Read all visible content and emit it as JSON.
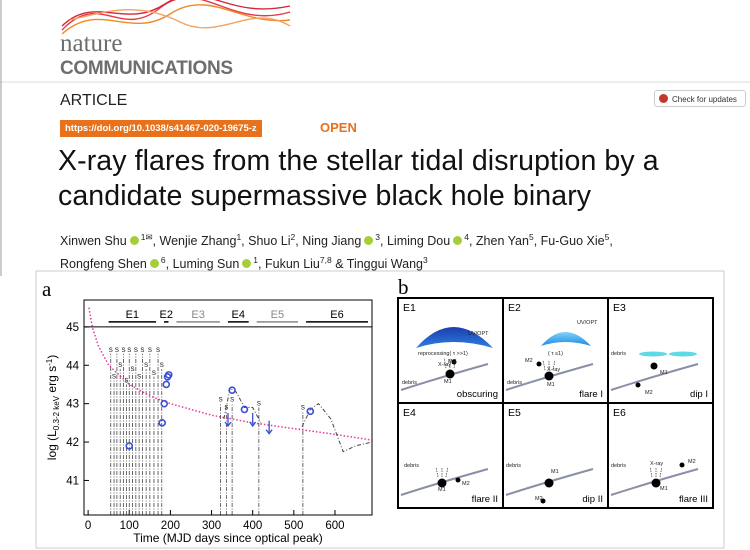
{
  "header": {
    "journal_top": "nature",
    "journal_bottom": "COMMUNICATIONS",
    "section": "ARTICLE",
    "check": "Check for updates",
    "doi": "https://doi.org/10.1038/s41467-020-19675-z",
    "access": "OPEN"
  },
  "article": {
    "title_lines": [
      "X-ray flares from the stellar tidal disruption by a",
      "candidate supermassive black hole binary"
    ],
    "author_lines": [
      [
        {
          "name": "Xinwen Shu",
          "orcid": true,
          "sup": "1✉",
          "after": ", "
        },
        {
          "name": "Wenjie Zhang",
          "sup": "1",
          "after": ", "
        },
        {
          "name": "Shuo Li",
          "sup": "2",
          "after": ", "
        },
        {
          "name": "Ning Jiang",
          "orcid": true,
          "sup": "3",
          "after": ", "
        },
        {
          "name": "Liming Dou",
          "orcid": true,
          "sup": "4",
          "after": ", "
        },
        {
          "name": "Zhen Yan",
          "sup": "5",
          "after": ", "
        },
        {
          "name": "Fu-Guo Xie",
          "sup": "5",
          "after": ","
        }
      ],
      [
        {
          "name": "Rongfeng Shen",
          "orcid": true,
          "sup": "6",
          "after": ", "
        },
        {
          "name": "Luming Sun",
          "orcid": true,
          "sup": "1",
          "after": ", "
        },
        {
          "name": "Fukun Liu",
          "sup": "7,8",
          "after": " & "
        },
        {
          "name": "Tinggui Wang",
          "sup": "3"
        }
      ]
    ]
  },
  "chart_data": {
    "type": "line",
    "panel": "a",
    "x_label": "Time (MJD days since optical peak)",
    "y_label": {
      "main": "log (L",
      "sub": "0.3-2 keV",
      "mid": " erg s",
      "sup": "-1",
      "end": ")"
    },
    "xlim": [
      -10,
      690
    ],
    "xticks": [
      0,
      100,
      200,
      300,
      400,
      500,
      600
    ],
    "ylim": [
      40.1,
      45.7
    ],
    "yticks": [
      41,
      42,
      43,
      44,
      45
    ],
    "epoch_level": 45,
    "epochs": [
      {
        "label": "E1",
        "start": 40,
        "end": 175,
        "color": "#000000"
      },
      {
        "label": "E2",
        "start": 175,
        "end": 205,
        "color": "#000000"
      },
      {
        "label": "E3",
        "start": 205,
        "end": 330,
        "color": "#888888"
      },
      {
        "label": "E4",
        "start": 330,
        "end": 400,
        "color": "#000000"
      },
      {
        "label": "E5",
        "start": 400,
        "end": 520,
        "color": "#888888"
      },
      {
        "label": "E6",
        "start": 520,
        "end": 690,
        "color": "#000000"
      }
    ],
    "observations": {
      "marker": "S",
      "x": [
        55,
        63,
        70,
        78,
        86,
        93,
        100,
        108,
        116,
        124,
        132,
        141,
        150,
        160,
        170,
        179,
        322,
        336,
        350,
        415,
        522
      ],
      "top": [
        44.3,
        43.6,
        44.3,
        43.9,
        44.3,
        43.5,
        44.3,
        43.8,
        44.3,
        43.6,
        44.3,
        43.9,
        44.3,
        43.7,
        44.3,
        43.9,
        43.0,
        42.8,
        43.0,
        42.9,
        42.8
      ]
    },
    "series": [
      {
        "style": "dotted",
        "color": "#e8379a",
        "x": [
          2,
          10,
          25,
          50,
          100,
          150,
          200,
          300,
          400,
          500,
          600,
          690
        ],
        "values": [
          45.5,
          45.0,
          44.5,
          44.0,
          43.5,
          43.2,
          43.0,
          42.7,
          42.5,
          42.35,
          42.2,
          42.05
        ]
      },
      {
        "style": "dashdot",
        "color": "#444444",
        "x": [
          330,
          345,
          360,
          380,
          400,
          420,
          null,
          520,
          540,
          560,
          590,
          620,
          650,
          690
        ],
        "values": [
          42.6,
          43.4,
          43.3,
          42.9,
          42.9,
          42.5,
          null,
          42.4,
          42.85,
          43.0,
          42.6,
          41.75,
          41.9,
          42.0
        ]
      },
      {
        "style": "markers",
        "color": "#3a4fd6",
        "x": [
          100,
          180,
          185,
          190,
          193,
          196,
          350,
          380,
          540
        ],
        "values": [
          41.9,
          42.5,
          43.0,
          43.5,
          43.7,
          43.75,
          43.35,
          42.85,
          42.8
        ]
      },
      {
        "style": "upper-limit",
        "color": "#3a4fd6",
        "x": [
          340,
          400,
          440
        ],
        "values": [
          42.6,
          42.6,
          42.4
        ]
      }
    ]
  },
  "panel_b": {
    "label": "b",
    "boxes": [
      {
        "label": "E1",
        "caption": "obscuring",
        "notes": [
          "UV/OPT",
          "reprocessing( τ >>1)",
          "X-ray",
          "M2",
          "M1",
          "debris"
        ]
      },
      {
        "label": "E2",
        "caption": "flare I",
        "notes": [
          "UV/OPT",
          "( τ ≤1)",
          "X-ray",
          "M2",
          "M1",
          "debris"
        ]
      },
      {
        "label": "E3",
        "caption": "dip I",
        "notes": [
          "debris",
          "M1",
          "M2"
        ]
      },
      {
        "label": "E4",
        "caption": "flare II",
        "notes": [
          "M1",
          "M2",
          "debris"
        ]
      },
      {
        "label": "E5",
        "caption": "dip II",
        "notes": [
          "M1",
          "M2",
          "debris"
        ]
      },
      {
        "label": "E6",
        "caption": "flare III",
        "notes": [
          "X-ray",
          "M2",
          "M1",
          "debris"
        ]
      }
    ]
  }
}
